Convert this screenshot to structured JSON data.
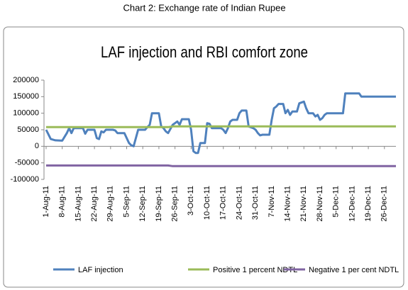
{
  "caption": "Chart 2: Exchange rate of Indian Rupee",
  "chart_data": {
    "type": "line",
    "title": "LAF injection and RBI comfort zone",
    "x": [
      "1-Aug-11",
      "3-Aug-11",
      "5-Aug-11",
      "8-Aug-11",
      "10-Aug-11",
      "11-Aug-11",
      "12-Aug-11",
      "13-Aug-11",
      "17-Aug-11",
      "18-Aug-11",
      "19-Aug-11",
      "22-Aug-11",
      "23-Aug-11",
      "24-Aug-11",
      "25-Aug-11",
      "26-Aug-11",
      "27-Aug-11",
      "30-Aug-11",
      "31-Aug-11",
      "1-Sep-11",
      "4-Sep-11",
      "6-Sep-11",
      "7-Sep-11",
      "8-Sep-11",
      "10-Sep-11",
      "13-Sep-11",
      "14-Sep-11",
      "15-Sep-11",
      "16-Sep-11",
      "19-Sep-11",
      "20-Sep-11",
      "21-Sep-11",
      "22-Sep-11",
      "23-Sep-11",
      "25-Sep-11",
      "26-Sep-11",
      "27-Sep-11",
      "28-Sep-11",
      "29-Sep-11",
      "2-Oct-11",
      "3-Oct-11",
      "4-Oct-11",
      "5-Oct-11",
      "6-Oct-11",
      "7-Oct-11",
      "9-Oct-11",
      "10-Oct-11",
      "11-Oct-11",
      "12-Oct-11",
      "16-Oct-11",
      "17-Oct-11",
      "18-Oct-11",
      "19-Oct-11",
      "20-Oct-11",
      "21-Oct-11",
      "23-Oct-11",
      "24-Oct-11",
      "25-Oct-11",
      "27-Oct-11",
      "28-Oct-11",
      "30-Oct-11",
      "31-Oct-11",
      "1-Nov-11",
      "2-Nov-11",
      "3-Nov-11",
      "6-Nov-11",
      "7-Nov-11",
      "8-Nov-11",
      "9-Nov-11",
      "10-Nov-11",
      "12-Nov-11",
      "13-Nov-11",
      "14-Nov-11",
      "15-Nov-11",
      "16-Nov-11",
      "18-Nov-11",
      "19-Nov-11",
      "21-Nov-11",
      "22-Nov-11",
      "23-Nov-11",
      "25-Nov-11",
      "26-Nov-11",
      "27-Nov-11",
      "28-Nov-11",
      "29-Nov-11",
      "30-Nov-11",
      "1-Dec-11",
      "8-Dec-11",
      "9-Dec-11",
      "15-Dec-11",
      "16-Dec-11",
      "31-Dec-11"
    ],
    "series": [
      {
        "name": "LAF injection",
        "color": "#4f81bd",
        "values": [
          50000,
          22000,
          18000,
          17000,
          40000,
          55000,
          40000,
          55000,
          55000,
          38000,
          50000,
          50000,
          25000,
          22000,
          45000,
          42000,
          50000,
          50000,
          48000,
          40000,
          40000,
          10000,
          3000,
          0,
          50000,
          50000,
          58000,
          65000,
          100000,
          100000,
          60000,
          55000,
          45000,
          40000,
          65000,
          70000,
          75000,
          65000,
          82000,
          82000,
          50000,
          -15000,
          -20000,
          -20000,
          10000,
          10000,
          70000,
          68000,
          55000,
          55000,
          50000,
          40000,
          55000,
          75000,
          80000,
          80000,
          100000,
          108000,
          108000,
          60000,
          55000,
          50000,
          40000,
          33000,
          35000,
          35000,
          80000,
          115000,
          120000,
          128000,
          128000,
          100000,
          110000,
          95000,
          105000,
          105000,
          130000,
          135000,
          115000,
          100000,
          100000,
          90000,
          95000,
          80000,
          85000,
          95000,
          100000,
          100000,
          160000,
          160000,
          150000,
          150000
        ]
      },
      {
        "name": "Positive 1 percent NDTL",
        "color": "#9bbb59",
        "values": [
          58000,
          58000,
          58000,
          58000,
          58000,
          58000,
          58000,
          58000,
          58000,
          58000,
          58000,
          58000,
          58000,
          58000,
          58000,
          58000,
          58000,
          58000,
          58000,
          58000,
          58000,
          58000,
          58000,
          58000,
          58000,
          58000,
          58000,
          58000,
          58000,
          58000,
          58000,
          58000,
          58000,
          58000,
          60000,
          60000,
          60000,
          60000,
          60000,
          60000,
          60000,
          60000,
          60000,
          60000,
          60000,
          60000,
          60000,
          60000,
          60000,
          60000,
          60000,
          60000,
          60000,
          60000,
          60000,
          60000,
          60000,
          60000,
          60000,
          60000,
          60000,
          60000,
          60000,
          60000,
          60000,
          60000,
          60000,
          60000,
          60000,
          60000,
          60000,
          60000,
          60000,
          60000,
          60000,
          60000,
          60000,
          60000,
          60000,
          60000,
          60000,
          60000,
          60000,
          60000,
          60000,
          60000,
          60000,
          60000,
          60000,
          60000,
          60000,
          60000
        ]
      },
      {
        "name": "Negative 1 per cent NDTL",
        "color": "#8064a2",
        "values": [
          -58000,
          -58000,
          -58000,
          -58000,
          -58000,
          -58000,
          -58000,
          -58000,
          -58000,
          -58000,
          -58000,
          -58000,
          -58000,
          -58000,
          -58000,
          -58000,
          -58000,
          -58000,
          -58000,
          -58000,
          -58000,
          -58000,
          -58000,
          -58000,
          -58000,
          -58000,
          -58000,
          -58000,
          -58000,
          -58000,
          -58000,
          -58000,
          -58000,
          -58000,
          -60000,
          -60000,
          -60000,
          -60000,
          -60000,
          -60000,
          -60000,
          -60000,
          -60000,
          -60000,
          -60000,
          -60000,
          -60000,
          -60000,
          -60000,
          -60000,
          -60000,
          -60000,
          -60000,
          -60000,
          -60000,
          -60000,
          -60000,
          -60000,
          -60000,
          -60000,
          -60000,
          -60000,
          -60000,
          -60000,
          -60000,
          -60000,
          -60000,
          -60000,
          -60000,
          -60000,
          -60000,
          -60000,
          -60000,
          -60000,
          -60000,
          -60000,
          -60000,
          -60000,
          -60000,
          -60000,
          -60000,
          -60000,
          -60000,
          -60000,
          -60000,
          -60000,
          -60000,
          -60000,
          -60000,
          -60000,
          -60000,
          -60000
        ]
      }
    ],
    "xlim": [
      "1-Aug-11",
      "31-Dec-11"
    ],
    "xticks": [
      "1-Aug-11",
      "8-Aug-11",
      "15-Aug-11",
      "22-Aug-11",
      "29-Aug-11",
      "5-Sep-11",
      "12-Sep-11",
      "19-Sep-11",
      "26-Sep-11",
      "3-Oct-11",
      "10-Oct-11",
      "17-Oct-11",
      "24-Oct-11",
      "31-Oct-11",
      "7-Nov-11",
      "14-Nov-11",
      "21-Nov-11",
      "28-Nov-11",
      "5-Dec-11",
      "12-Dec-11",
      "19-Dec-11",
      "26-Dec-11"
    ],
    "ylim": [
      -100000,
      200000
    ],
    "yticks": [
      -100000,
      -50000,
      0,
      50000,
      100000,
      150000,
      200000
    ],
    "grid": false,
    "legend": "bottom"
  }
}
